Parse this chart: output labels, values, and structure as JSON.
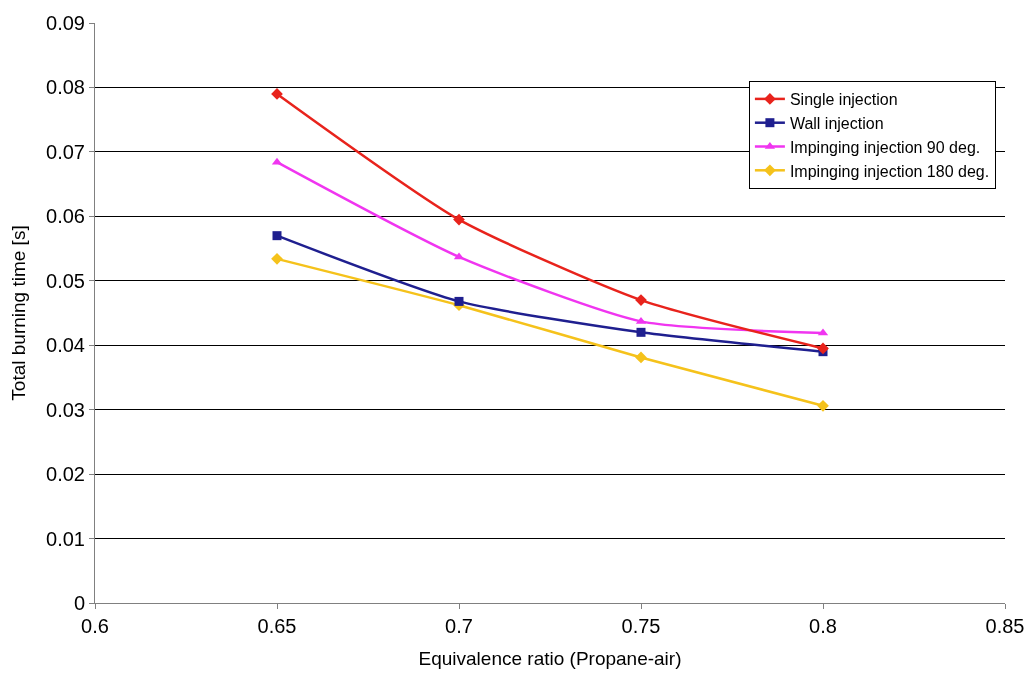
{
  "chart_data": {
    "type": "line",
    "xlabel": "Equivalence ratio (Propane-air)",
    "ylabel": "Total burning time [s]",
    "x": [
      0.65,
      0.7,
      0.75,
      0.8
    ],
    "series": [
      {
        "name": "Single injection",
        "color": "#e8231c",
        "marker": "diamond",
        "values": [
          0.079,
          0.0595,
          0.047,
          0.0395
        ]
      },
      {
        "name": "Wall injection",
        "color": "#1f1f8f",
        "marker": "square",
        "values": [
          0.057,
          0.0468,
          0.042,
          0.039
        ]
      },
      {
        "name": "Impinging injection 90 deg.",
        "color": "#f035f0",
        "marker": "triangle",
        "values": [
          0.0684,
          0.0537,
          0.0437,
          0.0419
        ]
      },
      {
        "name": "Impinging injection 180 deg.",
        "color": "#f5c21b",
        "marker": "diamond",
        "values": [
          0.0534,
          0.0462,
          0.0381,
          0.0306
        ]
      }
    ],
    "xlim": [
      0.6,
      0.85
    ],
    "xticks": [
      0.6,
      0.65,
      0.7,
      0.75,
      0.8,
      0.85
    ],
    "ylim": [
      0,
      0.09
    ],
    "yticks": [
      0,
      0.01,
      0.02,
      0.03,
      0.04,
      0.05,
      0.06,
      0.07,
      0.08,
      0.09
    ],
    "grid": "y",
    "legend": "top right"
  }
}
